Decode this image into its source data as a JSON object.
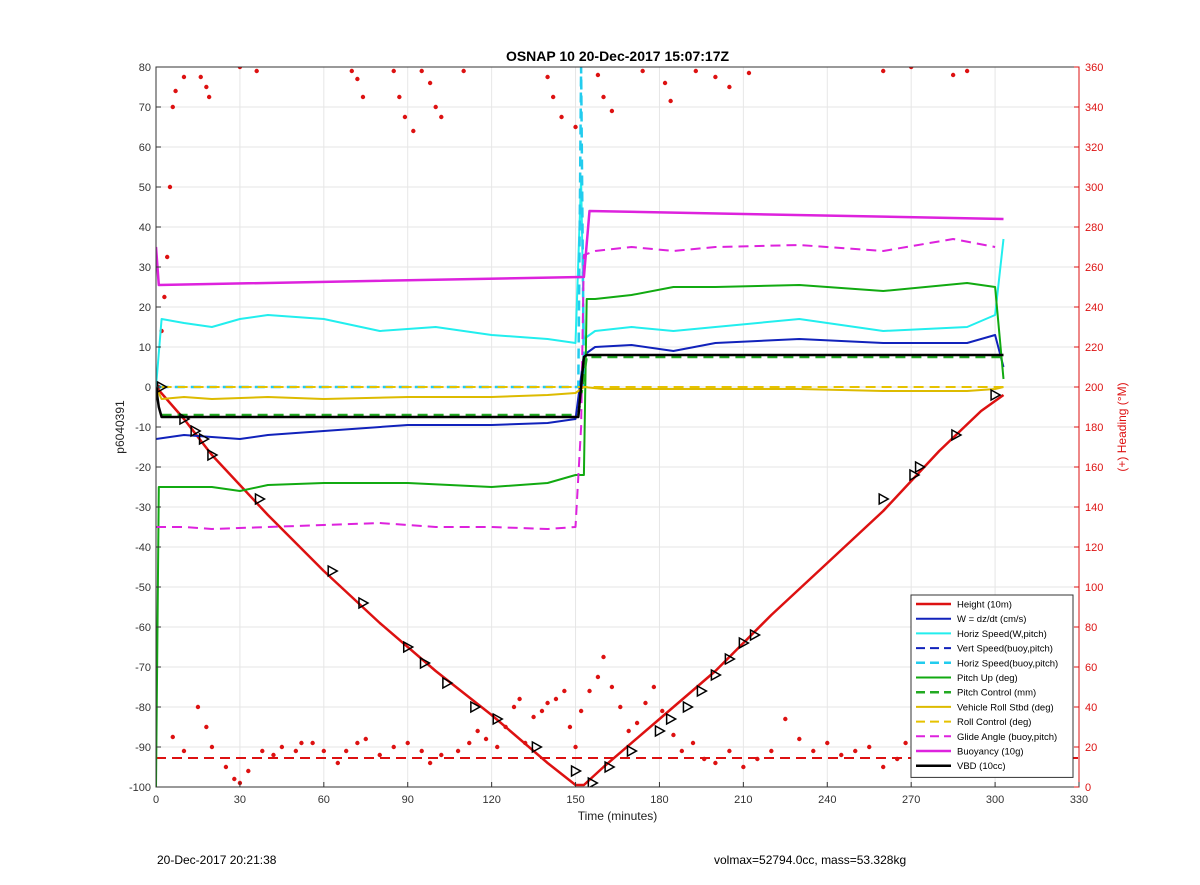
{
  "footer": {
    "left": "20-Dec-2017 20:21:38",
    "right": "volmax=52794.0cc, mass=53.328kg"
  },
  "chart_data": {
    "type": "line",
    "title": "OSNAP 10 20-Dec-2017 15:07:17Z",
    "xlabel": "Time (minutes)",
    "ylabel": "p6040391",
    "y2label": "(+) Heading (°M)",
    "xlim": [
      0,
      330
    ],
    "ylim": [
      -100,
      80
    ],
    "y2lim": [
      0,
      360
    ],
    "xticks": [
      0,
      30,
      60,
      90,
      120,
      150,
      180,
      210,
      240,
      270,
      300,
      330
    ],
    "yticks": [
      -100,
      -90,
      -80,
      -70,
      -60,
      -50,
      -40,
      -30,
      -20,
      -10,
      0,
      10,
      20,
      30,
      40,
      50,
      60,
      70,
      80
    ],
    "y2ticks": [
      0,
      20,
      40,
      60,
      80,
      100,
      120,
      140,
      160,
      180,
      200,
      220,
      240,
      260,
      280,
      300,
      320,
      340,
      360
    ],
    "grid": true,
    "legend_position": "bottom-right",
    "series": [
      {
        "name": "Height (10m)",
        "color": "#dd1111",
        "style": "solid",
        "width": 2.5,
        "x": [
          0,
          10,
          20,
          40,
          60,
          80,
          100,
          120,
          140,
          150,
          153,
          160,
          180,
          200,
          220,
          240,
          260,
          280,
          295,
          303
        ],
        "y": [
          0,
          -8,
          -17,
          -32,
          -46,
          -59,
          -71,
          -82,
          -94,
          -99.5,
          -99.5,
          -95,
          -83,
          -71,
          -57,
          -44,
          -31,
          -16,
          -6,
          -2
        ]
      },
      {
        "name": "W = dz/dt (cm/s)",
        "color": "#1122bb",
        "style": "solid",
        "width": 2,
        "x": [
          0,
          10,
          20,
          30,
          40,
          60,
          90,
          120,
          140,
          150,
          153,
          157,
          170,
          185,
          200,
          230,
          260,
          290,
          300,
          303
        ],
        "y": [
          -13,
          -12,
          -12.5,
          -13,
          -12,
          -11,
          -9.5,
          -9.5,
          -9,
          -8,
          8,
          10,
          10.5,
          9,
          11,
          12,
          11,
          11,
          13,
          5
        ]
      },
      {
        "name": "Horiz Speed(W,pitch)",
        "color": "#22eeee",
        "style": "solid",
        "width": 2,
        "x": [
          0,
          2,
          10,
          20,
          30,
          40,
          60,
          80,
          100,
          120,
          140,
          150,
          152,
          153,
          157,
          170,
          185,
          200,
          230,
          260,
          290,
          300,
          303
        ],
        "y": [
          0,
          17,
          16,
          15,
          17,
          18,
          17,
          14,
          15,
          13,
          12,
          11,
          52,
          12,
          14,
          15,
          14,
          15,
          17,
          14,
          15,
          18,
          37
        ]
      },
      {
        "name": "Vert Speed(buoy,pitch)",
        "color": "#1122bb",
        "style": "dash",
        "width": 2,
        "x": [],
        "y": []
      },
      {
        "name": "Horiz Speed(buoy,pitch)",
        "color": "#22ccee",
        "style": "dash",
        "width": 2.5,
        "x": [
          1,
          151,
          152,
          153
        ],
        "y": [
          0,
          0,
          80,
          0
        ]
      },
      {
        "name": "Pitch Up (deg)",
        "color": "#11aa11",
        "style": "solid",
        "width": 2,
        "x": [
          0,
          1,
          2,
          10,
          20,
          30,
          40,
          60,
          90,
          120,
          140,
          150,
          153,
          154,
          157,
          170,
          185,
          200,
          230,
          260,
          290,
          300,
          303
        ],
        "y": [
          -100,
          -25,
          -25,
          -25,
          -25,
          -26,
          -24.5,
          -24,
          -24,
          -25,
          -24,
          -22,
          -22,
          22,
          22,
          23,
          25,
          25,
          25.5,
          24,
          26,
          25,
          2
        ]
      },
      {
        "name": "Pitch Control (mm)",
        "color": "#22aa22",
        "style": "dash",
        "width": 2.5,
        "x": [
          2,
          151,
          154,
          303
        ],
        "y": [
          -7,
          -7,
          7.5,
          7.5
        ]
      },
      {
        "name": "Vehicle Roll Stbd (deg)",
        "color": "#ddbb00",
        "style": "solid",
        "width": 2,
        "x": [
          0,
          2,
          10,
          20,
          40,
          60,
          90,
          120,
          140,
          150,
          153,
          160,
          180,
          200,
          230,
          260,
          290,
          300,
          303
        ],
        "y": [
          0,
          -3,
          -2.5,
          -3,
          -2.5,
          -3,
          -2.5,
          -2.5,
          -2,
          -1.5,
          0,
          -0.5,
          -0.5,
          -0.5,
          -0.5,
          -1,
          -1,
          -0.5,
          0
        ]
      },
      {
        "name": "Roll Control (deg)",
        "color": "#e6c200",
        "style": "dash",
        "width": 2,
        "x": [
          2,
          151,
          154,
          303
        ],
        "y": [
          0,
          0,
          0,
          0
        ]
      },
      {
        "name": "Glide Angle (buoy,pitch)",
        "color": "#dd22dd",
        "style": "dash",
        "width": 2,
        "x": [
          0,
          10,
          20,
          40,
          60,
          80,
          100,
          120,
          140,
          150,
          152,
          153,
          157,
          170,
          185,
          200,
          230,
          260,
          285,
          300
        ],
        "y": [
          -35,
          -35,
          -35.5,
          -35,
          -34.5,
          -34,
          -35,
          -35,
          -35.5,
          -35,
          -10,
          33,
          34,
          35,
          34,
          35,
          35.5,
          34,
          37,
          35
        ]
      },
      {
        "name": "Buoyancy (10g)",
        "color": "#dd22dd",
        "style": "solid",
        "width": 2.5,
        "x": [
          0,
          1,
          152,
          153,
          155,
          303
        ],
        "y": [
          35,
          25.5,
          27.5,
          27.5,
          44,
          42
        ]
      },
      {
        "name": "VBD (10cc)",
        "color": "#000000",
        "style": "solid",
        "width": 2.5,
        "x": [
          0,
          1,
          2,
          151,
          153,
          154,
          303
        ],
        "y": [
          0,
          -5,
          -7.5,
          -7.5,
          7.5,
          8,
          8
        ]
      }
    ],
    "heading_series": {
      "axis": "right",
      "color": "#dd1111",
      "style": "dots",
      "points": [
        [
          1,
          200
        ],
        [
          2,
          228
        ],
        [
          3,
          245
        ],
        [
          4,
          265
        ],
        [
          5,
          300
        ],
        [
          6,
          340
        ],
        [
          7,
          348
        ],
        [
          10,
          355
        ],
        [
          16,
          355
        ],
        [
          18,
          350
        ],
        [
          19,
          345
        ],
        [
          30,
          360
        ],
        [
          36,
          358
        ],
        [
          70,
          358
        ],
        [
          72,
          354
        ],
        [
          74,
          345
        ],
        [
          85,
          358
        ],
        [
          87,
          345
        ],
        [
          89,
          335
        ],
        [
          92,
          328
        ],
        [
          95,
          358
        ],
        [
          98,
          352
        ],
        [
          100,
          340
        ],
        [
          102,
          335
        ],
        [
          110,
          358
        ],
        [
          140,
          355
        ],
        [
          142,
          345
        ],
        [
          145,
          335
        ],
        [
          150,
          330
        ],
        [
          158,
          356
        ],
        [
          160,
          345
        ],
        [
          163,
          338
        ],
        [
          174,
          358
        ],
        [
          182,
          352
        ],
        [
          184,
          343
        ],
        [
          193,
          358
        ],
        [
          200,
          355
        ],
        [
          205,
          350
        ],
        [
          212,
          357
        ],
        [
          260,
          358
        ],
        [
          270,
          360
        ],
        [
          285,
          356
        ],
        [
          290,
          358
        ],
        [
          6,
          25
        ],
        [
          10,
          18
        ],
        [
          15,
          40
        ],
        [
          18,
          30
        ],
        [
          20,
          20
        ],
        [
          25,
          10
        ],
        [
          28,
          4
        ],
        [
          30,
          2
        ],
        [
          33,
          8
        ],
        [
          38,
          18
        ],
        [
          42,
          16
        ],
        [
          45,
          20
        ],
        [
          50,
          18
        ],
        [
          52,
          22
        ],
        [
          56,
          22
        ],
        [
          60,
          18
        ],
        [
          65,
          12
        ],
        [
          68,
          18
        ],
        [
          72,
          22
        ],
        [
          75,
          24
        ],
        [
          80,
          16
        ],
        [
          85,
          20
        ],
        [
          90,
          22
        ],
        [
          95,
          18
        ],
        [
          98,
          12
        ],
        [
          102,
          16
        ],
        [
          108,
          18
        ],
        [
          112,
          22
        ],
        [
          115,
          28
        ],
        [
          118,
          24
        ],
        [
          122,
          20
        ],
        [
          125,
          30
        ],
        [
          128,
          40
        ],
        [
          130,
          44
        ],
        [
          132,
          22
        ],
        [
          135,
          35
        ],
        [
          138,
          38
        ],
        [
          140,
          42
        ],
        [
          143,
          44
        ],
        [
          146,
          48
        ],
        [
          148,
          30
        ],
        [
          150,
          20
        ],
        [
          152,
          38
        ],
        [
          155,
          48
        ],
        [
          158,
          55
        ],
        [
          160,
          65
        ],
        [
          163,
          50
        ],
        [
          166,
          40
        ],
        [
          169,
          28
        ],
        [
          172,
          32
        ],
        [
          175,
          42
        ],
        [
          178,
          50
        ],
        [
          181,
          38
        ],
        [
          185,
          26
        ],
        [
          188,
          18
        ],
        [
          192,
          22
        ],
        [
          196,
          14
        ],
        [
          200,
          12
        ],
        [
          205,
          18
        ],
        [
          210,
          10
        ],
        [
          215,
          14
        ],
        [
          220,
          18
        ],
        [
          225,
          34
        ],
        [
          230,
          24
        ],
        [
          235,
          18
        ],
        [
          240,
          22
        ],
        [
          245,
          16
        ],
        [
          250,
          18
        ],
        [
          255,
          20
        ],
        [
          260,
          10
        ],
        [
          265,
          14
        ],
        [
          268,
          22
        ],
        [
          272,
          18
        ],
        [
          276,
          12
        ],
        [
          280,
          16
        ],
        [
          284,
          22
        ],
        [
          288,
          10
        ],
        [
          292,
          14
        ],
        [
          296,
          6
        ]
      ]
    },
    "reference_lines": [
      {
        "axis": "right",
        "value": 14.5,
        "color": "#dd1111",
        "style": "dash"
      }
    ],
    "markers": {
      "color": "#000000",
      "shape": "triangle",
      "x": [
        2,
        10,
        14,
        17,
        20,
        37,
        63,
        74,
        90,
        96,
        104,
        114,
        122,
        136,
        150,
        156,
        162,
        170,
        180,
        184,
        190,
        195,
        200,
        205,
        210,
        214,
        260,
        271,
        273,
        286,
        300
      ],
      "y": [
        0,
        -8,
        -11,
        -13,
        -17,
        -28,
        -46,
        -54,
        -65,
        -69,
        -74,
        -80,
        -83,
        -90,
        -96,
        -99,
        -95,
        -91,
        -86,
        -83,
        -80,
        -76,
        -72,
        -68,
        -64,
        -62,
        -28,
        -22,
        -20,
        -12,
        -2
      ]
    }
  }
}
